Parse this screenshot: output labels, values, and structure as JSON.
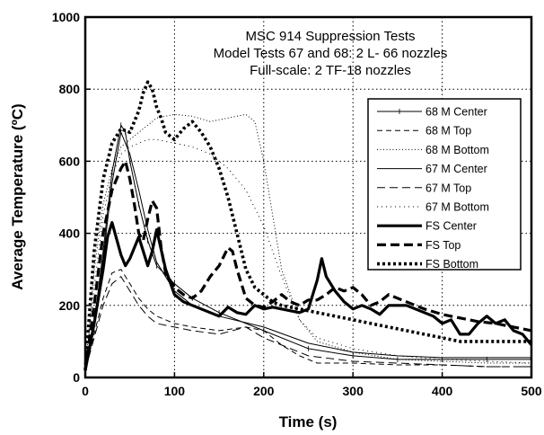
{
  "chart_data": {
    "type": "line",
    "title": "MSC 914 Suppression Tests",
    "subtitle_lines": [
      "Model Tests 67 and 68: 2 L- 66 nozzles",
      "Full-scale: 2 TF-18 nozzles"
    ],
    "xlabel": "Time (s)",
    "ylabel": "Average Temperature (ºC)",
    "xlim": [
      0,
      500
    ],
    "ylim": [
      0,
      1000
    ],
    "xticks": [
      0,
      100,
      200,
      300,
      400,
      500
    ],
    "yticks": [
      0,
      200,
      400,
      600,
      800,
      1000
    ],
    "grid": true,
    "legend_position": "right",
    "series": [
      {
        "name": "68 M Center",
        "style": "thin-solid-marker",
        "x": [
          0,
          10,
          20,
          30,
          40,
          45,
          50,
          60,
          70,
          80,
          100,
          120,
          150,
          200,
          250,
          300,
          350,
          400,
          450,
          500
        ],
        "y": [
          20,
          150,
          350,
          570,
          700,
          680,
          600,
          480,
          380,
          310,
          260,
          220,
          180,
          130,
          80,
          60,
          50,
          50,
          50,
          50
        ]
      },
      {
        "name": "68 M Top",
        "style": "thin-dash",
        "x": [
          0,
          10,
          20,
          30,
          40,
          50,
          60,
          70,
          80,
          100,
          120,
          150,
          180,
          200,
          220,
          240,
          260,
          300,
          350,
          400,
          450,
          500
        ],
        "y": [
          20,
          120,
          220,
          290,
          300,
          260,
          220,
          190,
          170,
          150,
          140,
          130,
          140,
          130,
          90,
          60,
          40,
          40,
          35,
          35,
          30,
          30
        ]
      },
      {
        "name": "68 M Bottom",
        "style": "thin-dot",
        "x": [
          0,
          10,
          20,
          30,
          40,
          50,
          60,
          70,
          80,
          100,
          120,
          140,
          160,
          180,
          190,
          200,
          220,
          240,
          260,
          300,
          350,
          400,
          450,
          500
        ],
        "y": [
          20,
          300,
          480,
          580,
          640,
          660,
          680,
          700,
          720,
          730,
          725,
          710,
          720,
          730,
          710,
          600,
          300,
          160,
          100,
          70,
          50,
          45,
          40,
          40
        ]
      },
      {
        "name": "67 M Center",
        "style": "thin-solid",
        "x": [
          0,
          10,
          20,
          30,
          40,
          50,
          60,
          70,
          80,
          100,
          120,
          150,
          200,
          250,
          300,
          350,
          400,
          450,
          500
        ],
        "y": [
          20,
          140,
          330,
          540,
          680,
          620,
          520,
          410,
          320,
          240,
          200,
          170,
          140,
          95,
          70,
          60,
          55,
          55,
          55
        ]
      },
      {
        "name": "67 M Top",
        "style": "thin-long-dash",
        "x": [
          0,
          10,
          20,
          30,
          40,
          50,
          60,
          70,
          80,
          100,
          120,
          150,
          180,
          200,
          220,
          250,
          300,
          350,
          400,
          450,
          500
        ],
        "y": [
          20,
          110,
          200,
          260,
          280,
          240,
          200,
          170,
          150,
          140,
          130,
          120,
          140,
          110,
          90,
          60,
          45,
          40,
          35,
          30,
          30
        ]
      },
      {
        "name": "67 M Bottom",
        "style": "thin-sparse-dot",
        "x": [
          0,
          10,
          20,
          30,
          40,
          50,
          60,
          70,
          80,
          100,
          120,
          140,
          160,
          180,
          200,
          220,
          240,
          260,
          300,
          350,
          400,
          450,
          500
        ],
        "y": [
          20,
          250,
          450,
          560,
          620,
          640,
          650,
          660,
          660,
          650,
          640,
          620,
          580,
          520,
          420,
          280,
          160,
          110,
          80,
          60,
          50,
          45,
          40
        ]
      },
      {
        "name": "FS Center",
        "style": "thick-solid",
        "x": [
          0,
          10,
          20,
          25,
          30,
          40,
          45,
          50,
          60,
          65,
          70,
          75,
          80,
          90,
          100,
          110,
          120,
          130,
          140,
          150,
          160,
          170,
          180,
          190,
          200,
          210,
          220,
          230,
          240,
          250,
          260,
          265,
          270,
          280,
          290,
          300,
          310,
          320,
          330,
          340,
          350,
          360,
          370,
          380,
          390,
          400,
          410,
          420,
          430,
          440,
          450,
          460,
          470,
          480,
          490,
          500
        ],
        "y": [
          20,
          150,
          300,
          390,
          430,
          340,
          310,
          330,
          390,
          350,
          310,
          350,
          410,
          300,
          230,
          210,
          200,
          190,
          180,
          170,
          195,
          180,
          175,
          200,
          190,
          195,
          190,
          185,
          180,
          190,
          270,
          330,
          280,
          240,
          210,
          190,
          200,
          190,
          175,
          200,
          200,
          200,
          190,
          180,
          170,
          150,
          160,
          120,
          120,
          150,
          170,
          150,
          160,
          130,
          120,
          90
        ]
      },
      {
        "name": "FS Top",
        "style": "thick-dash",
        "x": [
          0,
          10,
          20,
          30,
          40,
          45,
          50,
          55,
          60,
          65,
          70,
          75,
          80,
          85,
          90,
          100,
          110,
          120,
          130,
          140,
          150,
          160,
          165,
          170,
          180,
          190,
          200,
          210,
          220,
          230,
          240,
          250,
          260,
          270,
          280,
          290,
          300,
          310,
          320,
          330,
          340,
          350,
          360,
          380,
          400,
          420,
          440,
          460,
          480,
          500
        ],
        "y": [
          20,
          200,
          400,
          520,
          580,
          600,
          550,
          480,
          400,
          380,
          440,
          490,
          470,
          360,
          290,
          250,
          230,
          220,
          240,
          280,
          310,
          360,
          350,
          300,
          220,
          200,
          195,
          210,
          230,
          210,
          200,
          215,
          215,
          230,
          250,
          240,
          250,
          230,
          200,
          210,
          230,
          220,
          210,
          190,
          175,
          165,
          155,
          150,
          140,
          130
        ]
      },
      {
        "name": "FS Bottom",
        "style": "thick-dot",
        "x": [
          0,
          10,
          20,
          30,
          40,
          50,
          60,
          65,
          70,
          75,
          80,
          85,
          90,
          100,
          110,
          120,
          130,
          140,
          150,
          160,
          170,
          180,
          190,
          200,
          210,
          220,
          240,
          260,
          280,
          300,
          320,
          340,
          360,
          380,
          400,
          420,
          440,
          460,
          480,
          500
        ],
        "y": [
          20,
          350,
          550,
          650,
          690,
          680,
          740,
          790,
          820,
          800,
          750,
          720,
          680,
          660,
          690,
          710,
          680,
          640,
          580,
          500,
          400,
          300,
          250,
          230,
          210,
          200,
          190,
          180,
          170,
          160,
          150,
          140,
          130,
          120,
          110,
          100,
          100,
          100,
          100,
          100
        ]
      }
    ]
  }
}
